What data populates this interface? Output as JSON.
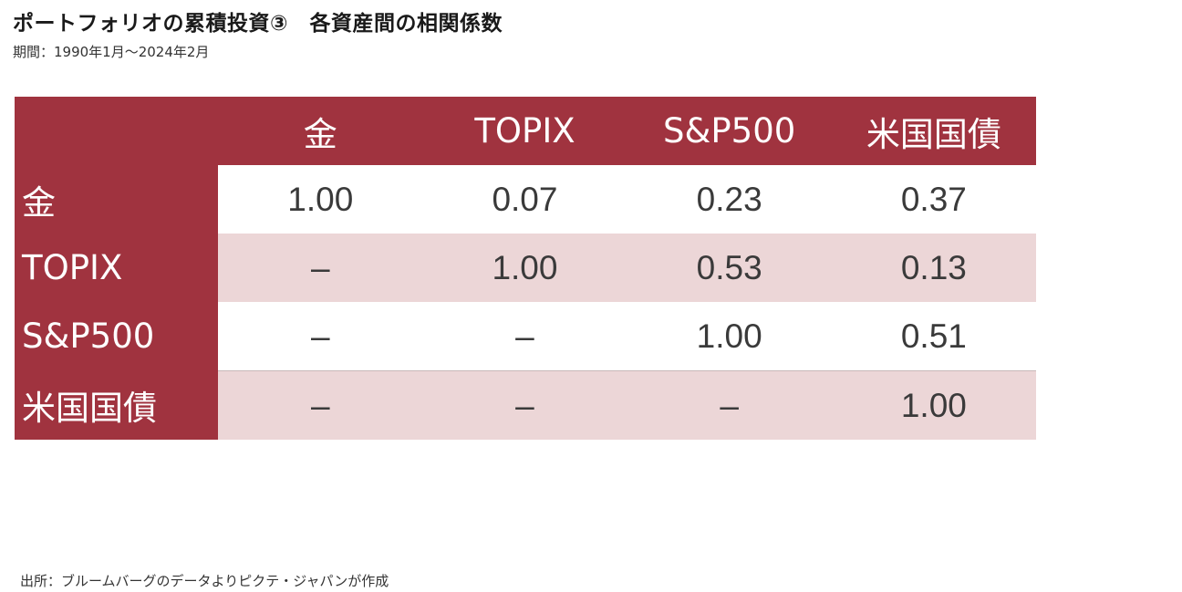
{
  "title": "ポートフォリオの累積投資③　各資産間の相関係数",
  "subtitle": "期間：1990年1月～2024年2月",
  "source": "出所：ブルームバーグのデータよりピクテ・ジャパンが作成",
  "colors": {
    "header_bg": "#a0333f",
    "stripe_bg": "#ecd6d7",
    "white_bg": "#ffffff"
  },
  "chart_data": {
    "type": "table",
    "columns": [
      "金",
      "TOPIX",
      "S&P500",
      "米国国債"
    ],
    "rows": [
      {
        "label": "金",
        "values": [
          "1.00",
          "0.07",
          "0.23",
          "0.37"
        ]
      },
      {
        "label": "TOPIX",
        "values": [
          "–",
          "1.00",
          "0.53",
          "0.13"
        ]
      },
      {
        "label": "S&P500",
        "values": [
          "–",
          "–",
          "1.00",
          "0.51"
        ]
      },
      {
        "label": "米国国債",
        "values": [
          "–",
          "–",
          "–",
          "1.00"
        ]
      }
    ]
  }
}
